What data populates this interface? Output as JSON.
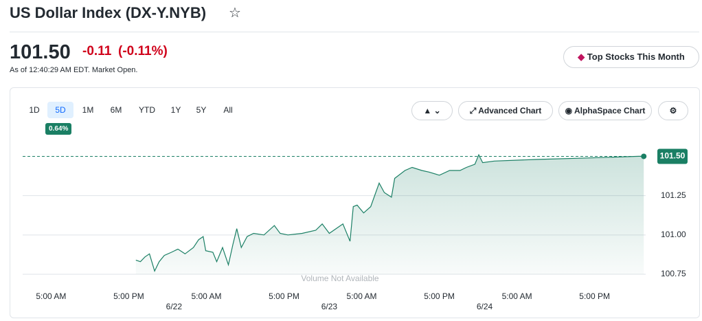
{
  "header": {
    "title": "US Dollar Index (DX-Y.NYB)",
    "price": "101.50",
    "change": "-0.11",
    "change_percent": "(-0.11%)",
    "timestamp": "As of 12:40:29 AM EDT. Market Open.",
    "button": "Top Stocks This Month"
  },
  "chart_panel": {
    "ranges": [
      "1D",
      "5D",
      "1M",
      "6M",
      "YTD",
      "1Y",
      "5Y",
      "All"
    ],
    "badge": "0.64%",
    "buttons": [
      "Advanced Chart",
      "AlphaSpace Chart"
    ]
  },
  "chart_data": {
    "type": "line",
    "color": "#1a7f64",
    "x": [
      13.1,
      13.8,
      14.5,
      15.2,
      16.0,
      16.7,
      17.5,
      18.6,
      19.6,
      20.7,
      22.0,
      22.8,
      23.5,
      23.9,
      25.0,
      25.6,
      26.5,
      27.4,
      28.1,
      28.7,
      29.4,
      30.3,
      31.3,
      32.9,
      34.5,
      35.4,
      36.6,
      38.8,
      40.9,
      41.9,
      43.0,
      45.1,
      46.2,
      46.7,
      47.3,
      48.3,
      49.4,
      50.7,
      51.5,
      52.6,
      53.1,
      54.7,
      55.8,
      57.3,
      58.4,
      60.0,
      61.6,
      63.2,
      64.2,
      65.5,
      66.1,
      66.7,
      68.5,
      74.9,
      83.4,
      90.8,
      91.6
    ],
    "values": [
      100.84,
      100.83,
      100.86,
      100.88,
      100.77,
      100.83,
      100.87,
      100.89,
      100.91,
      100.88,
      100.92,
      100.97,
      100.99,
      100.9,
      100.89,
      100.83,
      100.92,
      100.81,
      100.94,
      101.04,
      100.92,
      100.99,
      101.01,
      101.0,
      101.06,
      101.01,
      101.0,
      101.01,
      101.03,
      101.07,
      101.01,
      101.07,
      100.96,
      101.18,
      101.19,
      101.14,
      101.18,
      101.33,
      101.27,
      101.24,
      101.36,
      101.41,
      101.43,
      101.41,
      101.4,
      101.38,
      101.41,
      101.41,
      101.43,
      101.45,
      101.51,
      101.46,
      101.47,
      101.48,
      101.49,
      101.5,
      101.5
    ],
    "xlim": [
      -4.5,
      92
    ],
    "ylim": [
      100.75,
      101.62
    ],
    "xticks": [
      {
        "value": 0,
        "label": "5:00 AM"
      },
      {
        "value": 12,
        "label": "5:00 PM"
      },
      {
        "value": 24,
        "label": "5:00 AM"
      },
      {
        "value": 36,
        "label": "5:00 PM"
      },
      {
        "value": 48,
        "label": "5:00 AM"
      },
      {
        "value": 60,
        "label": "5:00 PM"
      },
      {
        "value": 72,
        "label": "5:00 AM"
      },
      {
        "value": 84,
        "label": "5:00 PM"
      }
    ],
    "date_ticks": [
      {
        "value": 19,
        "label": "6/22"
      },
      {
        "value": 43,
        "label": "6/23"
      },
      {
        "value": 67,
        "label": "6/24"
      }
    ],
    "yticks": [
      100.75,
      {
        "value": 101,
        "label": "101.00"
      },
      101.25
    ],
    "last": {
      "value": 101.5,
      "label": "101.50"
    },
    "annotation": "Volume Not Available",
    "grid": true
  }
}
